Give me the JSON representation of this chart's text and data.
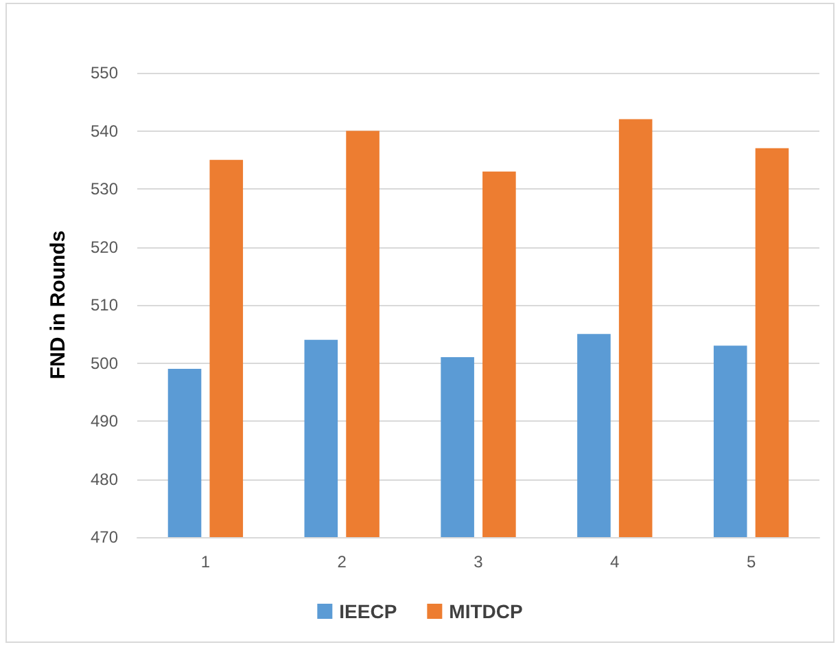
{
  "chart_data": {
    "type": "bar",
    "ylabel": "FND in Rounds",
    "categories": [
      "1",
      "2",
      "3",
      "4",
      "5"
    ],
    "series": [
      {
        "name": "IEECP",
        "color": "#5b9bd5",
        "values": [
          499,
          504,
          501,
          505,
          503
        ]
      },
      {
        "name": "MITDCP",
        "color": "#ed7d31",
        "values": [
          535,
          540,
          533,
          542,
          537
        ]
      }
    ],
    "ylim": [
      470,
      550
    ],
    "yticks": [
      470,
      480,
      490,
      500,
      510,
      520,
      530,
      540,
      550
    ],
    "grid": "y",
    "legend": "bottom"
  }
}
